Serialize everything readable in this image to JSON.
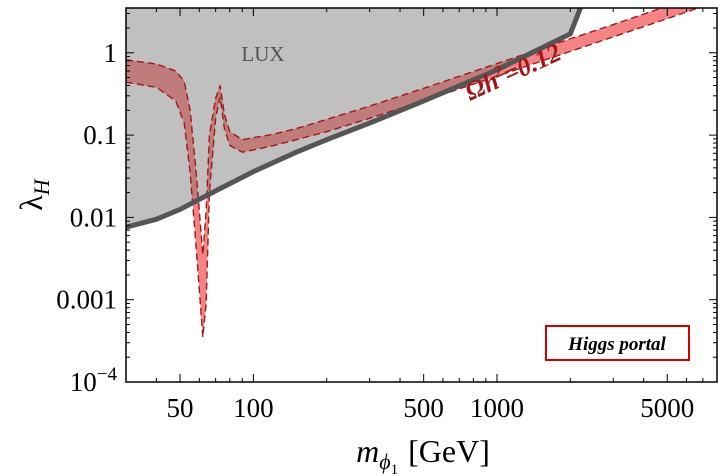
{
  "chart_data": {
    "type": "line",
    "title": "",
    "xlabel": "m",
    "xlabel_subscript": "ϕ",
    "xlabel_subsubscript": "1",
    "xlabel_unit": "[GeV]",
    "ylabel": "λ",
    "ylabel_subscript": "H",
    "x_scale": "log",
    "y_scale": "log",
    "xlim": [
      30,
      8000
    ],
    "ylim": [
      0.0001,
      3.5
    ],
    "x_ticks": [
      {
        "value": 50,
        "label": "50"
      },
      {
        "value": 100,
        "label": "100"
      },
      {
        "value": 500,
        "label": "500"
      },
      {
        "value": 1000,
        "label": "1000"
      },
      {
        "value": 5000,
        "label": "5000"
      }
    ],
    "y_ticks": [
      {
        "value": 0.0001,
        "base": "10",
        "exp": "−4"
      },
      {
        "value": 0.001,
        "label": "0.001"
      },
      {
        "value": 0.01,
        "label": "0.01"
      },
      {
        "value": 0.1,
        "label": "0.1"
      },
      {
        "value": 1,
        "label": "1"
      }
    ],
    "grid": false,
    "colors": {
      "excluded_region": "#c0c0c0",
      "lux_bound": "#555555",
      "relic_band_light": "#f37d7d",
      "relic_band_dark": "#c07b7b",
      "relic_band_edge": "#a01818",
      "annotation": "#a01818",
      "box_border": "#d40000"
    },
    "series": [
      {
        "name": "LUX",
        "kind": "exclusion-bound",
        "x": [
          30,
          40,
          50,
          70,
          100,
          150,
          200,
          300,
          500,
          1000,
          2000,
          2200
        ],
        "y": [
          0.0076,
          0.0095,
          0.0125,
          0.021,
          0.036,
          0.062,
          0.088,
          0.14,
          0.26,
          0.62,
          1.7,
          3.5
        ]
      },
      {
        "name": "Ωh²=0.12",
        "kind": "band",
        "x": [
          30,
          40,
          48,
          52,
          55,
          58,
          60,
          62,
          64,
          66,
          70,
          73,
          76,
          80,
          90,
          100,
          120,
          150,
          200,
          300,
          500,
          1000,
          2000,
          3000,
          5000,
          8000
        ],
        "y_lower": [
          0.44,
          0.38,
          0.26,
          0.14,
          0.035,
          0.005,
          0.0013,
          0.00035,
          0.0009,
          0.02,
          0.16,
          0.29,
          0.12,
          0.075,
          0.062,
          0.066,
          0.074,
          0.088,
          0.11,
          0.16,
          0.26,
          0.52,
          1.04,
          1.56,
          2.6,
          4.2
        ],
        "y_upper": [
          0.82,
          0.73,
          0.6,
          0.45,
          0.2,
          0.04,
          0.012,
          0.0035,
          0.012,
          0.1,
          0.28,
          0.4,
          0.18,
          0.11,
          0.088,
          0.093,
          0.102,
          0.12,
          0.155,
          0.225,
          0.37,
          0.74,
          1.48,
          2.2,
          3.7,
          6.0
        ]
      }
    ],
    "annotations": [
      {
        "text": "LUX",
        "color": "#555555"
      },
      {
        "text": "Ωh",
        "superscript": "2",
        "suffix": "=0.12",
        "color": "#a01818"
      }
    ],
    "legend": {
      "text": "Higgs portal",
      "placement": "bottom-right"
    }
  }
}
